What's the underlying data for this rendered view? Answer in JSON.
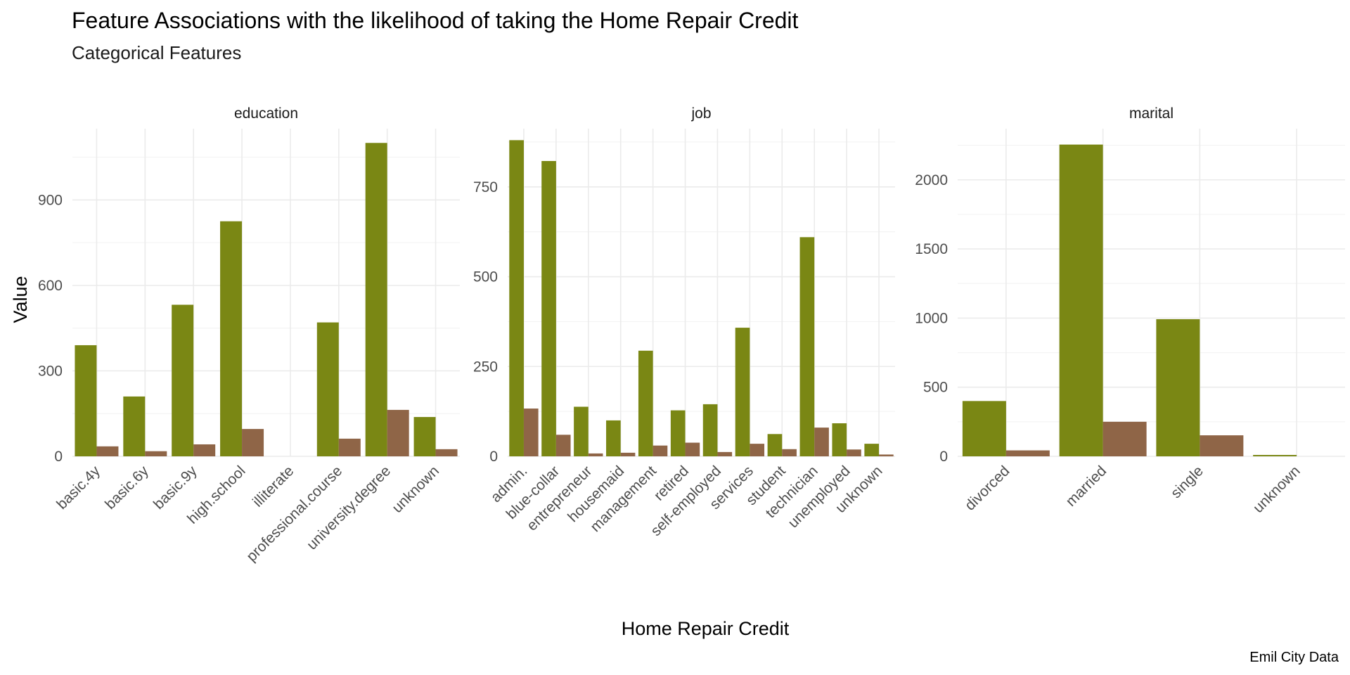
{
  "chart_data": {
    "type": "bar",
    "title": "Feature Associations with the likelihood of taking the Home Repair Credit",
    "subtitle": "Categorical Features",
    "xlabel": "Home Repair Credit",
    "ylabel": "Value",
    "caption": "Emil City Data",
    "grid": true,
    "legend": "none",
    "series_colors": [
      "#7a8714",
      "#8f6547"
    ],
    "facets": [
      {
        "name": "education",
        "ylim": [
          0,
          1150
        ],
        "yticks": [
          0,
          300,
          600,
          900
        ],
        "categories": [
          "basic.4y",
          "basic.6y",
          "basic.9y",
          "high.school",
          "illiterate",
          "professional.course",
          "university.degree",
          "unknown"
        ],
        "series": [
          {
            "values": [
              390,
              210,
              532,
              825,
              0,
              470,
              1100,
              138
            ]
          },
          {
            "values": [
              35,
              18,
              42,
              96,
              0,
              62,
              163,
              25
            ]
          }
        ]
      },
      {
        "name": "job",
        "ylim": [
          0,
          912
        ],
        "yticks": [
          0,
          250,
          500,
          750
        ],
        "categories": [
          "admin.",
          "blue-collar",
          "entrepreneur",
          "housemaid",
          "management",
          "retired",
          "self-employed",
          "services",
          "student",
          "technician",
          "unemployed",
          "unknown"
        ],
        "series": [
          {
            "values": [
              880,
              822,
              138,
              100,
              294,
              128,
              145,
              358,
              62,
              610,
              92,
              35
            ]
          },
          {
            "values": [
              133,
              60,
              8,
              10,
              30,
              38,
              12,
              35,
              20,
              80,
              19,
              5
            ]
          }
        ]
      },
      {
        "name": "marital",
        "ylim": [
          0,
          2370
        ],
        "yticks": [
          0,
          500,
          1000,
          1500,
          2000
        ],
        "categories": [
          "divorced",
          "married",
          "single",
          "unknown"
        ],
        "series": [
          {
            "values": [
              400,
              2255,
              992,
              10
            ]
          },
          {
            "values": [
              43,
              250,
              152,
              0
            ]
          }
        ]
      }
    ]
  }
}
